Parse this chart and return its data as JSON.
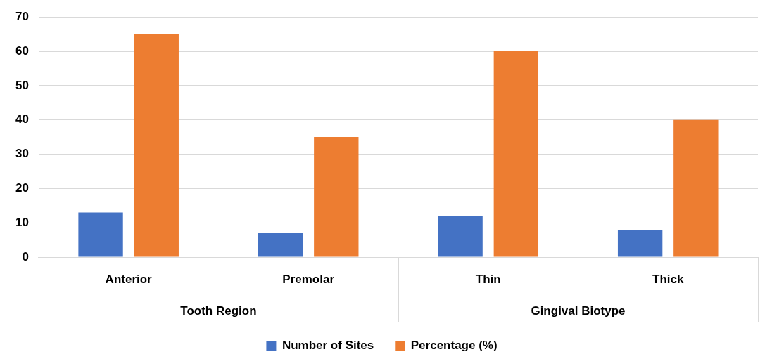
{
  "chart_data": {
    "type": "bar",
    "categories": [
      "Anterior",
      "Premolar",
      "Thin",
      "Thick"
    ],
    "series": [
      {
        "name": "Number of Sites",
        "color": "#4472c4",
        "values": [
          13,
          7,
          12,
          8
        ]
      },
      {
        "name": "Percentage (%)",
        "color": "#ed7d31",
        "values": [
          65,
          35,
          60,
          40
        ]
      }
    ],
    "ylim": [
      0,
      70
    ],
    "yticks": [
      0,
      10,
      20,
      30,
      40,
      50,
      60,
      70
    ],
    "grid": "y",
    "legend": "bottom",
    "annotations": [
      "Tooth Region",
      "Gingival Biotype"
    ]
  }
}
